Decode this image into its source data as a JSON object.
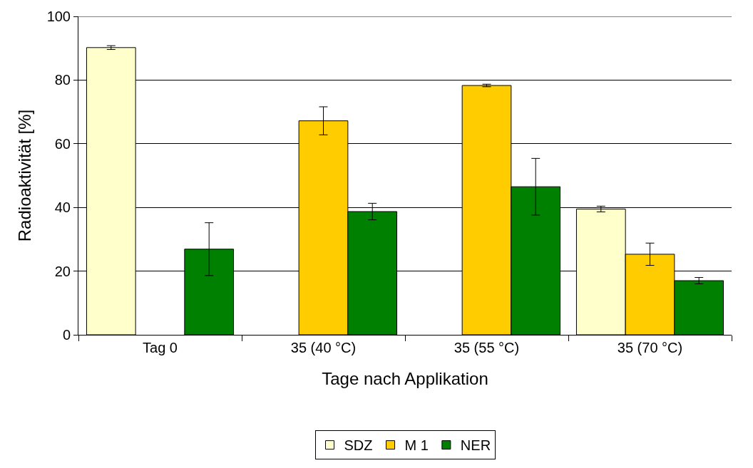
{
  "chart_data": {
    "type": "bar",
    "xlabel": "Tage nach Applikation",
    "ylabel": "Radioaktivität [%]",
    "categories": [
      "Tag 0",
      "35 (40 °C)",
      "35 (55 °C)",
      "35 (70 °C)"
    ],
    "series": [
      {
        "name": "SDZ",
        "color": "#ffffcc",
        "values": [
          90.2,
          null,
          null,
          39.5
        ],
        "errors": [
          0.6,
          null,
          null,
          0.9
        ]
      },
      {
        "name": "M 1",
        "color": "#ffcc00",
        "values": [
          null,
          67.2,
          78.3,
          25.3
        ],
        "errors": [
          null,
          4.4,
          0.4,
          3.5
        ]
      },
      {
        "name": "NER",
        "color": "#008000",
        "values": [
          26.9,
          38.7,
          46.5,
          17.0
        ],
        "errors": [
          8.3,
          2.6,
          8.9,
          1.0
        ]
      }
    ],
    "ylim": [
      0,
      100
    ],
    "yticks": [
      0,
      20,
      40,
      60,
      80,
      100
    ],
    "grid": "y",
    "legend": "bottom"
  }
}
